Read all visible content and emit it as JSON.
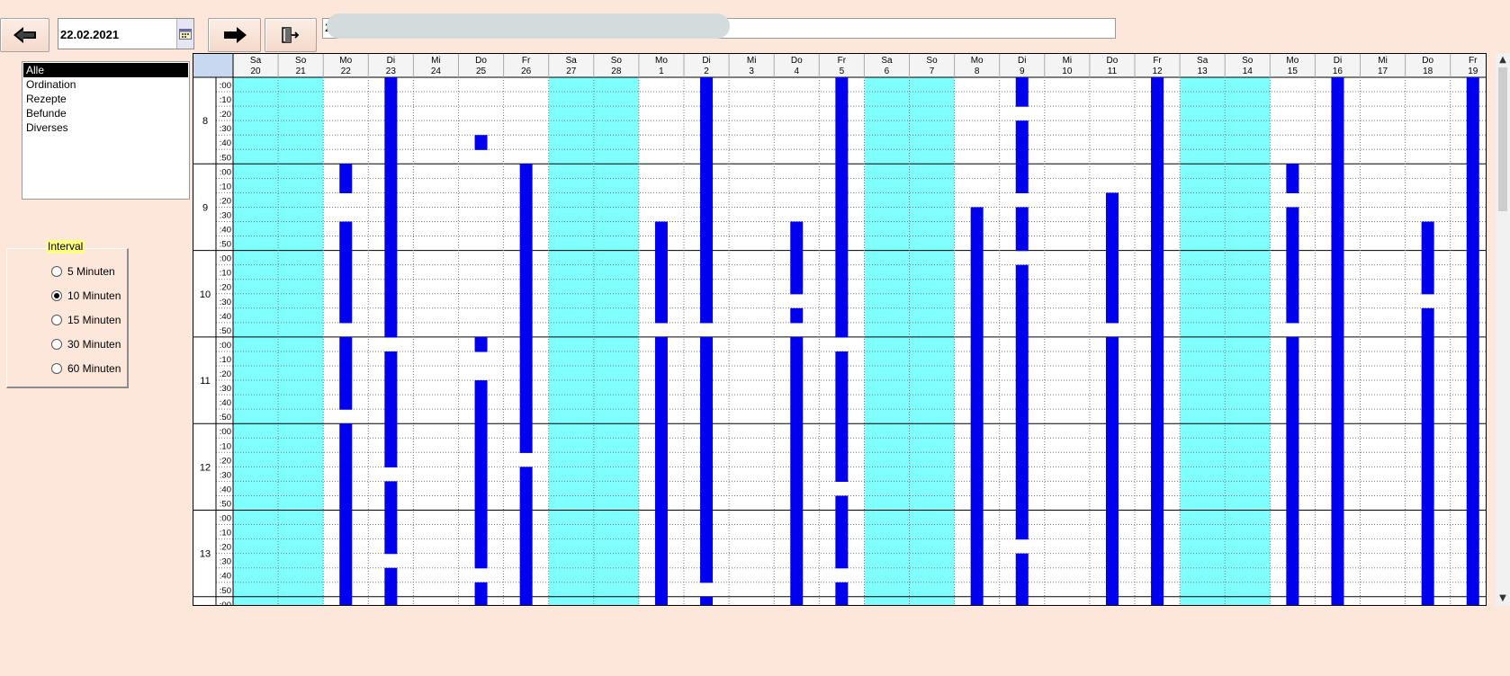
{
  "toolbar": {
    "prev_icon": "arrow-left-icon",
    "next_icon": "arrow-right-icon",
    "exit_icon": "exit-door-icon",
    "date_value": "22.02.2021",
    "calendar_icon": "calendar-icon",
    "search_value": "2"
  },
  "categories": [
    "Alle",
    "Ordination",
    "Rezepte",
    "Befunde",
    "Diverses"
  ],
  "selected_category": "Alle",
  "interval": {
    "title": "Interval",
    "options": [
      "5 Minuten",
      "10 Minuten",
      "15 Minuten",
      "30 Minuten",
      "60 Minuten"
    ],
    "selected": "10 Minuten"
  },
  "schedule": {
    "days": [
      {
        "wd": "Sa",
        "d": "20"
      },
      {
        "wd": "So",
        "d": "21"
      },
      {
        "wd": "Mo",
        "d": "22"
      },
      {
        "wd": "Di",
        "d": "23"
      },
      {
        "wd": "Mi",
        "d": "24"
      },
      {
        "wd": "Do",
        "d": "25"
      },
      {
        "wd": "Fr",
        "d": "26"
      },
      {
        "wd": "Sa",
        "d": "27"
      },
      {
        "wd": "So",
        "d": "28"
      },
      {
        "wd": "Mo",
        "d": "1"
      },
      {
        "wd": "Di",
        "d": "2"
      },
      {
        "wd": "Mi",
        "d": "3"
      },
      {
        "wd": "Do",
        "d": "4"
      },
      {
        "wd": "Fr",
        "d": "5"
      },
      {
        "wd": "Sa",
        "d": "6"
      },
      {
        "wd": "So",
        "d": "7"
      },
      {
        "wd": "Mo",
        "d": "8"
      },
      {
        "wd": "Di",
        "d": "9"
      },
      {
        "wd": "Mi",
        "d": "10"
      },
      {
        "wd": "Do",
        "d": "11"
      },
      {
        "wd": "Fr",
        "d": "12"
      },
      {
        "wd": "Sa",
        "d": "13"
      },
      {
        "wd": "So",
        "d": "14"
      },
      {
        "wd": "Mo",
        "d": "15"
      },
      {
        "wd": "Di",
        "d": "16"
      },
      {
        "wd": "Mi",
        "d": "17"
      },
      {
        "wd": "Do",
        "d": "18"
      },
      {
        "wd": "Fr",
        "d": "19"
      }
    ],
    "hours": [
      "8",
      "9",
      "10",
      "11",
      "12",
      "13"
    ],
    "minute_labels": [
      ":00",
      ":10",
      ":20",
      ":30",
      ":40",
      ":50"
    ],
    "weekend_color": "#80ffff",
    "booked_color": "#0000ee",
    "booked": [
      [],
      [],
      [
        6,
        7,
        10,
        11,
        12,
        13,
        14,
        15,
        16,
        18,
        19,
        20,
        21,
        22,
        24,
        25,
        26,
        27,
        28,
        29,
        30,
        31,
        32,
        33,
        34,
        35,
        36
      ],
      [
        0,
        1,
        2,
        3,
        4,
        5,
        6,
        7,
        8,
        9,
        10,
        11,
        12,
        13,
        14,
        15,
        16,
        17,
        19,
        20,
        21,
        22,
        23,
        24,
        25,
        26,
        28,
        29,
        30,
        31,
        32,
        34,
        35,
        36
      ],
      [],
      [
        4,
        18,
        21,
        22,
        23,
        24,
        25,
        26,
        27,
        28,
        29,
        30,
        31,
        32,
        33,
        35,
        36
      ],
      [
        6,
        7,
        8,
        9,
        10,
        11,
        12,
        13,
        14,
        15,
        16,
        17,
        18,
        19,
        20,
        21,
        22,
        23,
        24,
        25,
        27,
        28,
        29,
        30,
        31,
        32,
        33,
        34,
        35,
        36
      ],
      [],
      [],
      [
        10,
        11,
        12,
        13,
        14,
        15,
        16,
        18,
        19,
        20,
        21,
        22,
        23,
        24,
        25,
        26,
        27,
        28,
        29,
        30,
        31,
        32,
        33,
        34,
        35,
        36
      ],
      [
        0,
        1,
        2,
        3,
        4,
        5,
        6,
        7,
        8,
        9,
        10,
        11,
        12,
        13,
        14,
        15,
        16,
        18,
        19,
        20,
        21,
        22,
        23,
        24,
        25,
        26,
        27,
        28,
        29,
        30,
        31,
        32,
        33,
        34,
        36
      ],
      [],
      [
        10,
        11,
        12,
        13,
        14,
        16,
        18,
        19,
        20,
        21,
        22,
        23,
        24,
        25,
        26,
        27,
        28,
        29,
        30,
        31,
        32,
        33,
        34,
        35,
        36
      ],
      [
        0,
        1,
        2,
        3,
        4,
        5,
        6,
        7,
        8,
        9,
        10,
        11,
        12,
        13,
        14,
        15,
        16,
        17,
        19,
        20,
        21,
        22,
        23,
        24,
        25,
        26,
        27,
        29,
        30,
        31,
        32,
        33,
        35,
        36
      ],
      [],
      [],
      [
        9,
        10,
        11,
        12,
        13,
        14,
        15,
        16,
        17,
        18,
        19,
        20,
        21,
        22,
        23,
        24,
        25,
        26,
        27,
        28,
        29,
        30,
        31,
        32,
        33,
        34,
        35,
        36
      ],
      [
        0,
        1,
        3,
        4,
        5,
        6,
        7,
        9,
        10,
        11,
        13,
        14,
        15,
        16,
        17,
        18,
        19,
        20,
        21,
        22,
        23,
        24,
        25,
        26,
        27,
        28,
        29,
        30,
        31,
        33,
        34,
        35,
        36
      ],
      [],
      [
        8,
        9,
        10,
        11,
        12,
        13,
        14,
        15,
        16,
        18,
        19,
        20,
        21,
        22,
        23,
        24,
        25,
        26,
        27,
        28,
        29,
        30,
        31,
        32,
        33,
        34,
        35,
        36
      ],
      [
        0,
        1,
        2,
        3,
        4,
        5,
        6,
        7,
        8,
        9,
        10,
        11,
        12,
        13,
        14,
        15,
        16,
        17,
        18,
        19,
        20,
        21,
        22,
        23,
        24,
        25,
        26,
        27,
        28,
        29,
        30,
        31,
        32,
        33,
        34,
        35,
        36
      ],
      [],
      [],
      [
        6,
        7,
        9,
        10,
        11,
        12,
        13,
        14,
        15,
        16,
        18,
        19,
        20,
        21,
        22,
        23,
        24,
        25,
        26,
        27,
        28,
        29,
        30,
        31,
        32,
        33,
        34,
        35,
        36
      ],
      [
        0,
        1,
        2,
        3,
        4,
        5,
        6,
        7,
        8,
        9,
        10,
        11,
        12,
        13,
        14,
        15,
        16,
        17,
        18,
        19,
        20,
        21,
        22,
        23,
        24,
        25,
        26,
        27,
        28,
        29,
        30,
        31,
        32,
        33,
        34,
        35,
        36
      ],
      [],
      [
        10,
        11,
        12,
        13,
        14,
        16,
        17,
        18,
        19,
        20,
        21,
        22,
        23,
        24,
        25,
        26,
        27,
        28,
        29,
        30,
        31,
        32,
        33,
        34,
        35,
        36
      ],
      [
        0,
        1,
        2,
        3,
        4,
        5,
        6,
        7,
        8,
        9,
        10,
        11,
        12,
        13,
        14,
        15,
        16,
        17,
        18,
        19,
        20,
        21,
        22,
        23,
        24,
        25,
        26,
        27,
        28,
        29,
        30,
        31,
        32,
        33,
        34,
        35,
        36
      ]
    ]
  }
}
